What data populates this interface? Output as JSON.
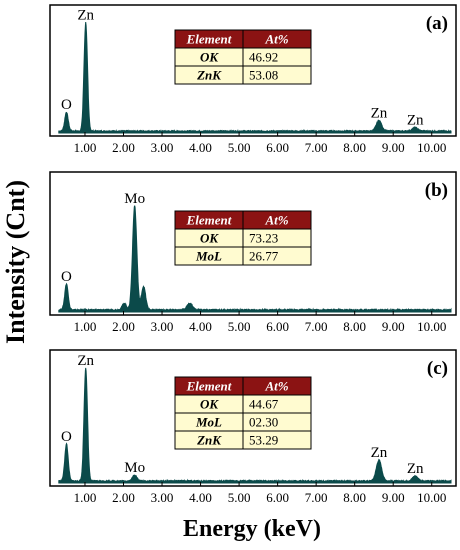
{
  "figure": {
    "ylabel": "Intensity (Cnt)",
    "xlabel": "Energy (keV)"
  },
  "chart_data": [
    {
      "type": "line",
      "panel_label": "(a)",
      "xlim": [
        0.3,
        10.5
      ],
      "ylim": [
        0,
        1.0
      ],
      "xticks": [
        "1.00",
        "2.00",
        "3.00",
        "4.00",
        "5.00",
        "6.00",
        "7.00",
        "8.00",
        "9.00",
        "10.00"
      ],
      "tick_values": [
        1,
        2,
        3,
        4,
        5,
        6,
        7,
        8,
        9,
        10
      ],
      "peaks": [
        {
          "label": "O",
          "x": 0.52,
          "y": 0.16
        },
        {
          "label": "Zn",
          "x": 1.02,
          "y": 0.92
        },
        {
          "label": "Zn",
          "x": 8.63,
          "y": 0.09
        },
        {
          "label": "Zn",
          "x": 9.57,
          "y": 0.03
        }
      ],
      "table": {
        "header": [
          "Element",
          "At%"
        ],
        "rows": [
          [
            "OK",
            "46.92"
          ],
          [
            "ZnK",
            "53.08"
          ]
        ]
      }
    },
    {
      "type": "line",
      "panel_label": "(b)",
      "xlim": [
        0.3,
        10.5
      ],
      "ylim": [
        0,
        1.0
      ],
      "xticks": [
        "1.00",
        "2.00",
        "3.00",
        "4.00",
        "5.00",
        "6.00",
        "7.00",
        "8.00",
        "9.00",
        "10.00"
      ],
      "tick_values": [
        1,
        2,
        3,
        4,
        5,
        6,
        7,
        8,
        9,
        10
      ],
      "peaks": [
        {
          "label": "O",
          "x": 0.52,
          "y": 0.2
        },
        {
          "label": "Mo",
          "x": 2.29,
          "y": 0.8
        },
        {
          "label": "",
          "x": 2.52,
          "y": 0.18
        },
        {
          "label": "",
          "x": 2.02,
          "y": 0.05
        },
        {
          "label": "",
          "x": 3.72,
          "y": 0.05
        }
      ],
      "table": {
        "header": [
          "Element",
          "At%"
        ],
        "rows": [
          [
            "OK",
            "73.23"
          ],
          [
            "MoL",
            "26.77"
          ]
        ]
      }
    },
    {
      "type": "line",
      "panel_label": "(c)",
      "xlim": [
        0.3,
        10.5
      ],
      "ylim": [
        0,
        1.0
      ],
      "xticks": [
        "1.00",
        "2.00",
        "3.00",
        "4.00",
        "5.00",
        "6.00",
        "7.00",
        "8.00",
        "9.00",
        "10.00"
      ],
      "tick_values": [
        1,
        2,
        3,
        4,
        5,
        6,
        7,
        8,
        9,
        10
      ],
      "peaks": [
        {
          "label": "O",
          "x": 0.52,
          "y": 0.3
        },
        {
          "label": "Zn",
          "x": 1.02,
          "y": 0.92
        },
        {
          "label": "Mo",
          "x": 2.29,
          "y": 0.05
        },
        {
          "label": "Zn",
          "x": 8.63,
          "y": 0.17
        },
        {
          "label": "Zn",
          "x": 9.57,
          "y": 0.04
        }
      ],
      "table": {
        "header": [
          "Element",
          "At%"
        ],
        "rows": [
          [
            "OK",
            "44.67"
          ],
          [
            "MoL",
            "02.30"
          ],
          [
            "ZnK",
            "53.29"
          ]
        ]
      }
    }
  ]
}
